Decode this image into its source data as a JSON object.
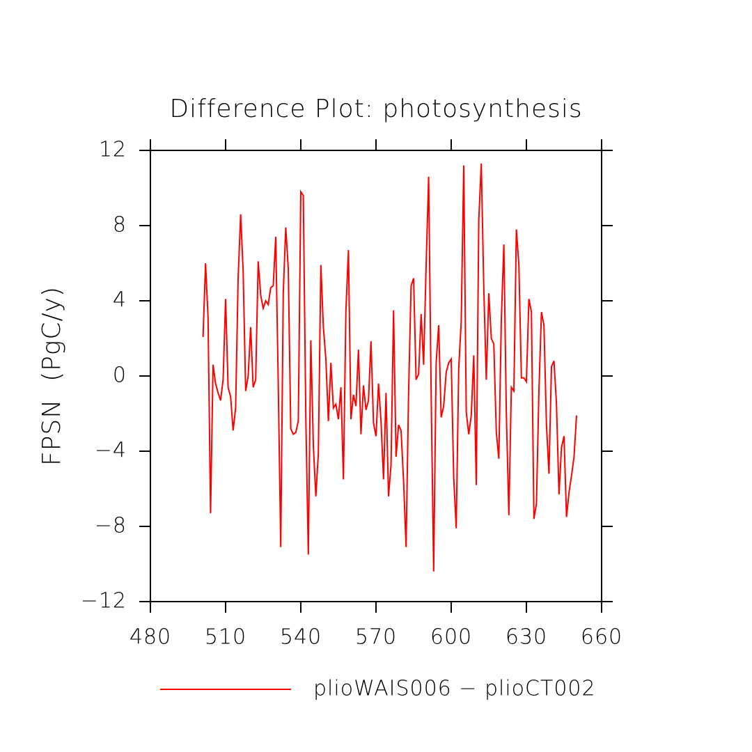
{
  "chart_data": {
    "type": "line",
    "title": "Difference Plot: photosynthesis",
    "ylabel": "FPSN  (PgC/y)",
    "x": [
      501,
      502,
      503,
      504,
      505,
      506,
      507,
      508,
      509,
      510,
      511,
      512,
      513,
      514,
      515,
      516,
      517,
      518,
      519,
      520,
      521,
      522,
      523,
      524,
      525,
      526,
      527,
      528,
      529,
      530,
      531,
      532,
      533,
      534,
      535,
      536,
      537,
      538,
      539,
      540,
      541,
      542,
      543,
      544,
      545,
      546,
      547,
      548,
      549,
      550,
      551,
      552,
      553,
      554,
      555,
      556,
      557,
      558,
      559,
      560,
      561,
      562,
      563,
      564,
      565,
      566,
      567,
      568,
      569,
      570,
      571,
      572,
      573,
      574,
      575,
      576,
      577,
      578,
      579,
      580,
      581,
      582,
      583,
      584,
      585,
      586,
      587,
      588,
      589,
      590,
      591,
      592,
      593,
      594,
      595,
      596,
      597,
      598,
      599,
      600,
      601,
      602,
      603,
      604,
      605,
      606,
      607,
      608,
      609,
      610,
      611,
      612,
      613,
      614,
      615,
      616,
      617,
      618,
      619,
      620,
      621,
      622,
      623,
      624,
      625,
      626,
      627,
      628,
      629,
      630,
      631,
      632,
      633,
      634,
      635,
      636,
      637,
      638,
      639,
      640,
      641,
      642,
      643,
      644,
      645,
      646,
      647,
      648,
      649,
      650
    ],
    "series": [
      {
        "name": "plioWAIS006 − plioCT002",
        "color": "#ff0000",
        "values": [
          2.07,
          6.0,
          3.1,
          -7.3,
          0.6,
          -0.4,
          -0.9,
          -1.3,
          -0.2,
          4.1,
          -0.6,
          -1.1,
          -2.9,
          -1.7,
          5.2,
          8.6,
          5.6,
          -0.8,
          0,
          2.6,
          -0.6,
          -0.2,
          6.1,
          4.3,
          3.6,
          4.0,
          3.8,
          4.7,
          4.8,
          7.4,
          -0.4,
          -9.1,
          4.4,
          7.9,
          5.7,
          -2.8,
          -3.1,
          -3.0,
          -2.4,
          9.8,
          9.6,
          -2.2,
          -9.5,
          1.9,
          -3.7,
          -6.4,
          -4.1,
          5.9,
          2.6,
          0.9,
          -2.4,
          0.7,
          -1.7,
          -1.5,
          -2.3,
          -0.6,
          -5.5,
          3.5,
          6.7,
          -2.3,
          -1.0,
          -1.6,
          1.4,
          -3.1,
          -0.5,
          -1.8,
          -1.3,
          1.85,
          -2.5,
          -3.2,
          -0.4,
          -2.4,
          -5.5,
          -0.9,
          -6.4,
          -4.7,
          3.5,
          -4.3,
          -2.6,
          -2.9,
          -5.6,
          -9.1,
          -0.9,
          4.8,
          5.2,
          -0.2,
          0.1,
          3.3,
          0.6,
          5.9,
          10.6,
          -0.9,
          -10.4,
          0.7,
          2.7,
          -2.2,
          -1.6,
          0.2,
          0.7,
          0.9,
          -5.4,
          -8.1,
          0.4,
          2.9,
          11.2,
          -1.9,
          -3.1,
          -2.1,
          1.1,
          -5.8,
          8.3,
          11.3,
          4.7,
          -0.2,
          4.4,
          2.0,
          1.7,
          -3.0,
          -4.4,
          3.0,
          7.0,
          -2.0,
          -7.4,
          -0.6,
          -0.8,
          7.8,
          5.9,
          -0.1,
          -0.1,
          -0.3,
          4.1,
          3.4,
          -7.6,
          -6.8,
          -0.8,
          3.4,
          2.7,
          -2.6,
          -5.2,
          0.5,
          0.8,
          -1.5,
          -6.3,
          -3.8,
          -3.2,
          -7.5,
          -6.2,
          -5.3,
          -4.3,
          -2.1
        ]
      }
    ],
    "xlim": [
      480,
      660
    ],
    "xticks": [
      480,
      510,
      540,
      570,
      600,
      630,
      660
    ],
    "ylim": [
      -12,
      12
    ],
    "yticks": [
      {
        "value": -12,
        "label": "−12"
      },
      {
        "value": -8,
        "label": "−8"
      },
      {
        "value": -4,
        "label": "−4"
      },
      0,
      4,
      8,
      12
    ]
  }
}
